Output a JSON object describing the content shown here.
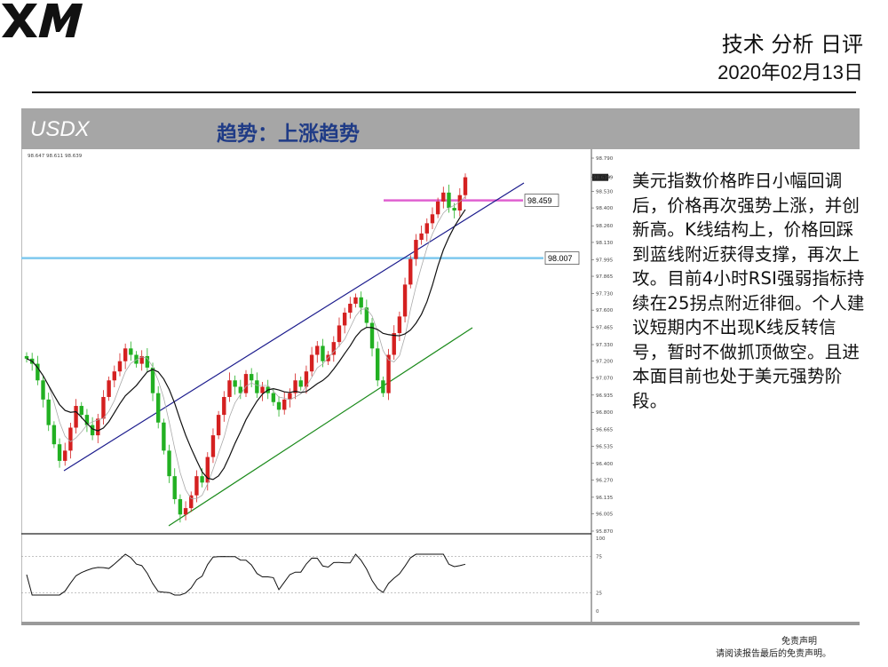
{
  "brand": {
    "logo_text": "XM",
    "logo_color": "#111111"
  },
  "header": {
    "title": "技术 分析 日评",
    "date": "2020年02月13日"
  },
  "banner": {
    "symbol": "USDX",
    "trend": "趋势：上涨趋势",
    "bg_color": "#a6a6a6",
    "trend_color": "#1f3b86"
  },
  "analysis_text": "美元指数价格昨日小幅回调后，价格再次强势上涨，并创新高。K线结构上，价格回踩到蓝线附近获得支撑，再次上攻。目前4小时RSI强弱指标持续在25拐点附近徘徊。个人建议短期内不出现K线反转信号，暂时不做抓顶做空。且进本面目前也处于美元强势阶段。",
  "footer": {
    "disclaimer_title": "免责声明",
    "disclaimer_text": "请阅读报告最后的免责声明。"
  },
  "chart_data": {
    "type": "candlestick",
    "ohlc_header": "98.647 98.611 98.639",
    "price_axis_ticks": [
      "98.790",
      "98.639",
      "98.530",
      "98.400",
      "98.260",
      "98.130",
      "97.995",
      "97.865",
      "97.730",
      "97.600",
      "97.465",
      "97.330",
      "97.200",
      "97.070",
      "96.935",
      "96.800",
      "96.665",
      "96.535",
      "96.400",
      "96.270",
      "96.135",
      "96.005",
      "95.870"
    ],
    "y_range": [
      95.87,
      98.79
    ],
    "levels": [
      {
        "value": 98.459,
        "label": "98.459",
        "color": "#e060d0"
      },
      {
        "value": 98.007,
        "label": "98.007",
        "color": "#7ec8ee"
      }
    ],
    "current_price": 98.639,
    "channel": {
      "upper_color": "#1a1a8c",
      "lower_color": "#1a8a1a"
    },
    "colors": {
      "bull": "#d42020",
      "bear": "#22b022",
      "ma_fast": "#aaaaaa",
      "ma_slow": "#111111"
    },
    "rsi": {
      "ticks": [
        "100",
        "75",
        "25",
        "0"
      ],
      "levels": [
        75,
        25
      ]
    },
    "close_series": [
      97.22,
      97.18,
      97.05,
      96.9,
      96.7,
      96.55,
      96.42,
      96.5,
      96.68,
      96.85,
      96.78,
      96.7,
      96.62,
      96.75,
      96.92,
      97.05,
      97.12,
      97.2,
      97.3,
      97.25,
      97.18,
      97.24,
      97.15,
      96.95,
      96.72,
      96.5,
      96.3,
      96.12,
      96.0,
      96.05,
      96.15,
      96.3,
      96.25,
      96.45,
      96.62,
      96.78,
      96.92,
      97.05,
      97.0,
      96.95,
      97.1,
      97.05,
      96.95,
      97.0,
      96.95,
      96.88,
      96.82,
      96.9,
      96.95,
      97.05,
      97.0,
      97.12,
      97.25,
      97.32,
      97.2,
      97.25,
      97.35,
      97.48,
      97.58,
      97.65,
      97.7,
      97.62,
      97.5,
      97.3,
      97.05,
      96.95,
      97.25,
      97.42,
      97.55,
      97.8,
      98.0,
      98.15,
      98.2,
      98.28,
      98.35,
      98.45,
      98.52,
      98.4,
      98.38,
      98.5,
      98.64
    ]
  }
}
